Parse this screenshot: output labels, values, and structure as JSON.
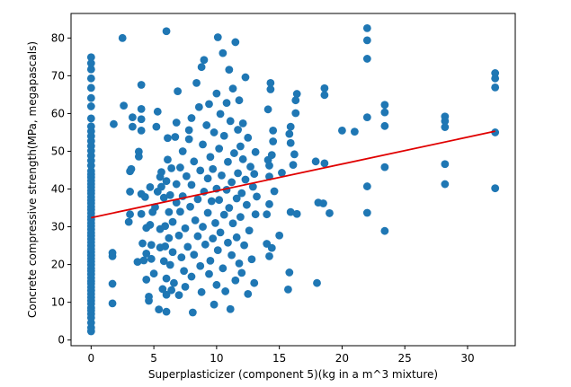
{
  "chart_data": {
    "type": "scatter",
    "xlabel": "Superplasticizer (component 5)(kg in a m^3 mixture)",
    "ylabel": "Concrete compressive strength(MPa, megapascals)",
    "xlim": [
      -1.6,
      33.8
    ],
    "ylim": [
      -1.5,
      86.5
    ],
    "xticks": [
      0,
      5,
      10,
      15,
      20,
      25,
      30
    ],
    "yticks": [
      0,
      10,
      20,
      30,
      40,
      50,
      60,
      70,
      80
    ],
    "point_color": "#1f77b4",
    "line_color": "#e00000",
    "regression_line": {
      "x": [
        0,
        32.2
      ],
      "y": [
        32.4,
        55.3
      ]
    },
    "points": [
      [
        0,
        2.3
      ],
      [
        0,
        3.3
      ],
      [
        0,
        4.6
      ],
      [
        0,
        5.9
      ],
      [
        0,
        6.9
      ],
      [
        0,
        7.8
      ],
      [
        0,
        8.5
      ],
      [
        0,
        9.6
      ],
      [
        0,
        10.4
      ],
      [
        0,
        11.3
      ],
      [
        0,
        12.2
      ],
      [
        0,
        13.1
      ],
      [
        0,
        14.0
      ],
      [
        0,
        14.9
      ],
      [
        0,
        15.6
      ],
      [
        0,
        16.5
      ],
      [
        0,
        17.4
      ],
      [
        0,
        18.3
      ],
      [
        0,
        19.0
      ],
      [
        0,
        19.9
      ],
      [
        0,
        20.8
      ],
      [
        0,
        21.6
      ],
      [
        0,
        22.4
      ],
      [
        0,
        23.3
      ],
      [
        0,
        24.1
      ],
      [
        0,
        25.0
      ],
      [
        0,
        25.9
      ],
      [
        0,
        26.7
      ],
      [
        0,
        27.6
      ],
      [
        0,
        28.4
      ],
      [
        0,
        29.3
      ],
      [
        0,
        30.2
      ],
      [
        0,
        31.0
      ],
      [
        0,
        31.9
      ],
      [
        0,
        32.7
      ],
      [
        0,
        33.6
      ],
      [
        0,
        34.5
      ],
      [
        0,
        35.3
      ],
      [
        0,
        36.2
      ],
      [
        0,
        37.0
      ],
      [
        0,
        37.9
      ],
      [
        0,
        38.8
      ],
      [
        0,
        39.6
      ],
      [
        0,
        40.5
      ],
      [
        0,
        41.3
      ],
      [
        0,
        42.2
      ],
      [
        0,
        43.1
      ],
      [
        0,
        43.9
      ],
      [
        0,
        44.8
      ],
      [
        0,
        46.2
      ],
      [
        0,
        47.5
      ],
      [
        0,
        48.8
      ],
      [
        0,
        50.1
      ],
      [
        0,
        51.4
      ],
      [
        0,
        52.7
      ],
      [
        0,
        54.0
      ],
      [
        0,
        55.3
      ],
      [
        0,
        56.6
      ],
      [
        0,
        58.7
      ],
      [
        0,
        61.9
      ],
      [
        0,
        64.1
      ],
      [
        0,
        66.8
      ],
      [
        0,
        69.3
      ],
      [
        0,
        71.7
      ],
      [
        0,
        73.3
      ],
      [
        0,
        74.9
      ],
      [
        1.7,
        9.7
      ],
      [
        1.7,
        14.9
      ],
      [
        1.7,
        22.2
      ],
      [
        1.7,
        23.1
      ],
      [
        1.8,
        57.2
      ],
      [
        2.5,
        80.0
      ],
      [
        2.6,
        62.1
      ],
      [
        3.0,
        31.3
      ],
      [
        3.1,
        33.3
      ],
      [
        3.1,
        39.3
      ],
      [
        3.1,
        44.7
      ],
      [
        3.2,
        45.3
      ],
      [
        3.3,
        56.5
      ],
      [
        3.3,
        59.0
      ],
      [
        3.7,
        20.7
      ],
      [
        3.8,
        49.9
      ],
      [
        3.8,
        48.6
      ],
      [
        4.0,
        38.7
      ],
      [
        4.0,
        55.5
      ],
      [
        4.0,
        58.5
      ],
      [
        4.0,
        61.2
      ],
      [
        4.0,
        67.6
      ],
      [
        4.0,
        33.4
      ],
      [
        4.1,
        25.6
      ],
      [
        4.2,
        21.1
      ],
      [
        4.3,
        37.9
      ],
      [
        4.4,
        16.0
      ],
      [
        4.4,
        22.9
      ],
      [
        4.4,
        29.7
      ],
      [
        4.6,
        11.5
      ],
      [
        4.6,
        10.4
      ],
      [
        4.7,
        40.5
      ],
      [
        4.7,
        30.5
      ],
      [
        4.8,
        21.5
      ],
      [
        4.8,
        25.2
      ],
      [
        4.9,
        33.9
      ],
      [
        5.0,
        17.6
      ],
      [
        5.1,
        35.2
      ],
      [
        5.2,
        56.5
      ],
      [
        5.3,
        39.3
      ],
      [
        5.3,
        60.5
      ],
      [
        5.4,
        8.1
      ],
      [
        5.5,
        24.5
      ],
      [
        5.5,
        29.4
      ],
      [
        5.5,
        43.2
      ],
      [
        5.6,
        40.6
      ],
      [
        5.6,
        44.5
      ],
      [
        5.7,
        13.5
      ],
      [
        5.8,
        37.7
      ],
      [
        5.8,
        20.9
      ],
      [
        5.9,
        30.2
      ],
      [
        5.9,
        24.8
      ],
      [
        6.0,
        81.8
      ],
      [
        6.0,
        7.5
      ],
      [
        6.0,
        16.3
      ],
      [
        6.0,
        12.0
      ],
      [
        6.0,
        42.1
      ],
      [
        6.1,
        53.5
      ],
      [
        6.1,
        47.8
      ],
      [
        6.2,
        27.0
      ],
      [
        6.2,
        33.9
      ],
      [
        6.3,
        19.9
      ],
      [
        6.3,
        38.4
      ],
      [
        6.4,
        45.5
      ],
      [
        6.4,
        13.2
      ],
      [
        6.5,
        23.3
      ],
      [
        6.5,
        31.3
      ],
      [
        6.6,
        15.1
      ],
      [
        6.7,
        53.8
      ],
      [
        6.8,
        57.6
      ],
      [
        6.8,
        41.3
      ],
      [
        6.8,
        36.4
      ],
      [
        6.9,
        65.9
      ],
      [
        7.0,
        27.7
      ],
      [
        7.0,
        11.9
      ],
      [
        7.1,
        45.7
      ],
      [
        7.1,
        34.0
      ],
      [
        7.2,
        21.9
      ],
      [
        7.3,
        38.1
      ],
      [
        7.3,
        50.0
      ],
      [
        7.4,
        18.3
      ],
      [
        7.5,
        29.6
      ],
      [
        7.5,
        14.1
      ],
      [
        7.6,
        43.4
      ],
      [
        7.7,
        24.7
      ],
      [
        7.8,
        53.2
      ],
      [
        7.8,
        55.6
      ],
      [
        7.9,
        35.3
      ],
      [
        8.0,
        41.1
      ],
      [
        8.0,
        58.8
      ],
      [
        8.0,
        16.8
      ],
      [
        8.1,
        7.3
      ],
      [
        8.2,
        22.6
      ],
      [
        8.2,
        47.3
      ],
      [
        8.3,
        31.7
      ],
      [
        8.4,
        68.1
      ],
      [
        8.5,
        27.5
      ],
      [
        8.5,
        37.3
      ],
      [
        8.6,
        61.7
      ],
      [
        8.7,
        19.6
      ],
      [
        8.7,
        44.9
      ],
      [
        8.8,
        72.3
      ],
      [
        8.8,
        12.7
      ],
      [
        8.9,
        51.8
      ],
      [
        8.9,
        30.0
      ],
      [
        9.0,
        74.2
      ],
      [
        9.0,
        39.3
      ],
      [
        9.1,
        25.3
      ],
      [
        9.2,
        56.9
      ],
      [
        9.3,
        42.8
      ],
      [
        9.3,
        33.7
      ],
      [
        9.4,
        17.5
      ],
      [
        9.4,
        62.5
      ],
      [
        9.5,
        48.5
      ],
      [
        9.5,
        21.0
      ],
      [
        9.6,
        36.8
      ],
      [
        9.7,
        26.9
      ],
      [
        9.7,
        45.3
      ],
      [
        9.8,
        9.4
      ],
      [
        9.8,
        55.0
      ],
      [
        9.9,
        31.0
      ],
      [
        10.0,
        65.3
      ],
      [
        10.0,
        40.1
      ],
      [
        10.0,
        14.6
      ],
      [
        10.1,
        80.2
      ],
      [
        10.1,
        23.8
      ],
      [
        10.2,
        50.7
      ],
      [
        10.2,
        37.1
      ],
      [
        10.3,
        59.9
      ],
      [
        10.3,
        28.5
      ],
      [
        10.4,
        43.6
      ],
      [
        10.5,
        19.0
      ],
      [
        10.5,
        76.0
      ],
      [
        10.6,
        33.2
      ],
      [
        10.6,
        54.1
      ],
      [
        10.7,
        12.9
      ],
      [
        10.8,
        39.8
      ],
      [
        10.8,
        62.8
      ],
      [
        10.9,
        25.8
      ],
      [
        10.9,
        47.2
      ],
      [
        11.0,
        35.0
      ],
      [
        11.0,
        71.6
      ],
      [
        11.1,
        8.2
      ],
      [
        11.1,
        58.0
      ],
      [
        11.2,
        41.8
      ],
      [
        11.2,
        22.5
      ],
      [
        11.3,
        30.9
      ],
      [
        11.3,
        66.6
      ],
      [
        11.4,
        49.5
      ],
      [
        11.5,
        15.8
      ],
      [
        11.5,
        78.9
      ],
      [
        11.6,
        37.5
      ],
      [
        11.6,
        27.2
      ],
      [
        11.7,
        55.7
      ],
      [
        11.7,
        44.2
      ],
      [
        11.8,
        20.3
      ],
      [
        11.8,
        63.5
      ],
      [
        11.9,
        32.6
      ],
      [
        11.9,
        51.3
      ],
      [
        12.0,
        38.9
      ],
      [
        12.0,
        17.8
      ],
      [
        12.1,
        47.9
      ],
      [
        12.1,
        57.4
      ],
      [
        12.2,
        25.1
      ],
      [
        12.3,
        42.5
      ],
      [
        12.3,
        69.6
      ],
      [
        12.4,
        35.8
      ],
      [
        12.5,
        12.2
      ],
      [
        12.5,
        53.6
      ],
      [
        12.6,
        29.0
      ],
      [
        12.7,
        45.9
      ],
      [
        12.8,
        21.4
      ],
      [
        12.9,
        40.6
      ],
      [
        13.0,
        15.1
      ],
      [
        13.0,
        44.0
      ],
      [
        13.1,
        33.3
      ],
      [
        13.1,
        49.8
      ],
      [
        13.2,
        38.0
      ],
      [
        14.0,
        25.5
      ],
      [
        14.0,
        33.3
      ],
      [
        14.1,
        47.7
      ],
      [
        14.1,
        61.1
      ],
      [
        14.2,
        36.0
      ],
      [
        14.2,
        43.3
      ],
      [
        14.2,
        46.2
      ],
      [
        14.2,
        22.2
      ],
      [
        14.3,
        66.4
      ],
      [
        14.3,
        68.1
      ],
      [
        14.4,
        49.0
      ],
      [
        14.4,
        24.4
      ],
      [
        14.5,
        55.5
      ],
      [
        14.5,
        52.6
      ],
      [
        14.6,
        39.4
      ],
      [
        15.0,
        27.7
      ],
      [
        15.2,
        44.3
      ],
      [
        15.7,
        13.4
      ],
      [
        15.8,
        17.9
      ],
      [
        15.9,
        33.9
      ],
      [
        15.9,
        52.2
      ],
      [
        15.8,
        54.6
      ],
      [
        15.9,
        56.5
      ],
      [
        16.1,
        46.4
      ],
      [
        16.2,
        49.2
      ],
      [
        16.3,
        60.1
      ],
      [
        16.3,
        63.5
      ],
      [
        16.4,
        65.2
      ],
      [
        16.4,
        33.4
      ],
      [
        17.9,
        47.3
      ],
      [
        18.0,
        15.1
      ],
      [
        18.1,
        36.4
      ],
      [
        18.5,
        36.2
      ],
      [
        18.6,
        46.8
      ],
      [
        18.6,
        64.9
      ],
      [
        18.6,
        66.7
      ],
      [
        19.0,
        33.6
      ],
      [
        20.0,
        55.5
      ],
      [
        21.0,
        55.2
      ],
      [
        22.0,
        33.7
      ],
      [
        22.0,
        40.7
      ],
      [
        22.0,
        59.0
      ],
      [
        22.0,
        74.5
      ],
      [
        22.0,
        79.4
      ],
      [
        22.0,
        82.6
      ],
      [
        23.4,
        28.9
      ],
      [
        23.4,
        45.8
      ],
      [
        23.4,
        56.7
      ],
      [
        23.4,
        60.3
      ],
      [
        23.4,
        62.3
      ],
      [
        28.2,
        41.3
      ],
      [
        28.2,
        46.6
      ],
      [
        28.2,
        56.4
      ],
      [
        28.2,
        58.0
      ],
      [
        28.2,
        59.2
      ],
      [
        32.2,
        40.2
      ],
      [
        32.2,
        55.0
      ],
      [
        32.2,
        66.9
      ],
      [
        32.2,
        69.3
      ],
      [
        32.2,
        70.7
      ]
    ]
  }
}
